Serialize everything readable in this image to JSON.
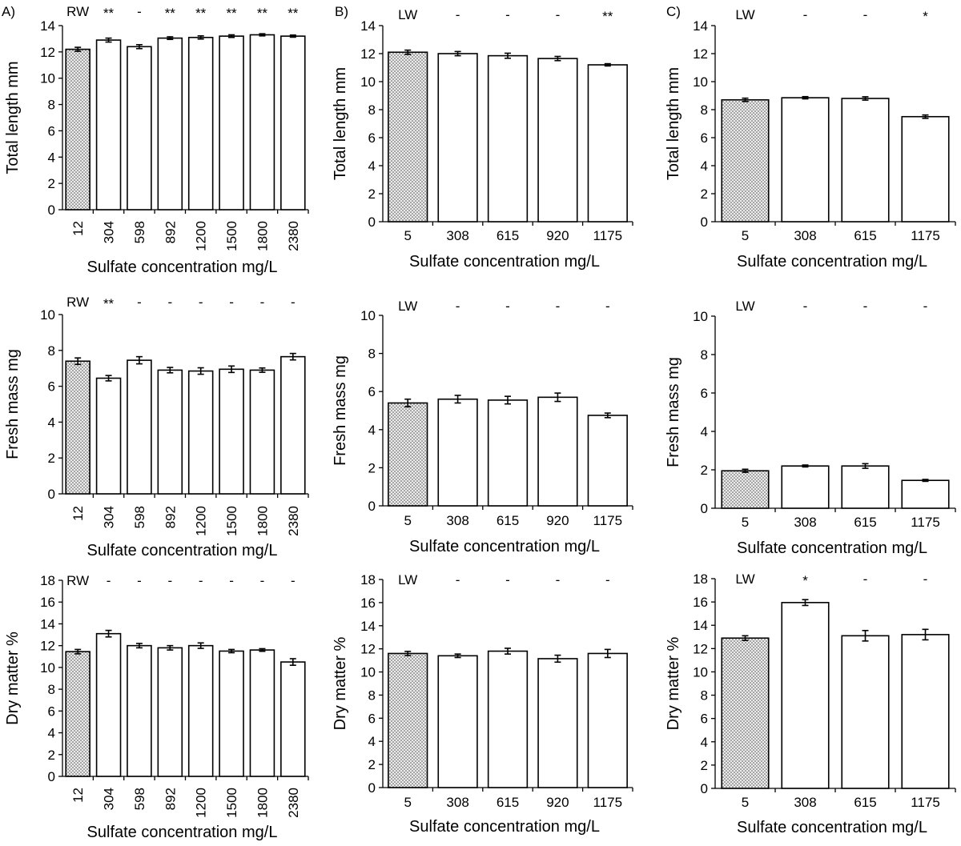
{
  "colors": {
    "control_fill": "#e9e9e9",
    "bar_fill": "#ffffff",
    "axis": "#000000"
  },
  "chart_data": [
    {
      "id": "A-length",
      "panel_letter": "A)",
      "type": "bar",
      "ylabel": "Total length mm",
      "xlabel": "Sulfate concentration mg/L",
      "ylim": [
        0,
        14
      ],
      "yticks": [
        0,
        2,
        4,
        6,
        8,
        10,
        12,
        14
      ],
      "xtick_rotated": true,
      "categories": [
        "12",
        "304",
        "598",
        "892",
        "1200",
        "1500",
        "1800",
        "2380"
      ],
      "values": [
        12.2,
        12.9,
        12.4,
        13.05,
        13.1,
        13.2,
        13.3,
        13.2
      ],
      "errors": [
        0.15,
        0.15,
        0.15,
        0.1,
        0.12,
        0.1,
        0.08,
        0.08
      ],
      "control_label": "RW",
      "significance": [
        "**",
        "-",
        "**",
        "**",
        "**",
        "**",
        "**"
      ]
    },
    {
      "id": "B-length",
      "panel_letter": "B)",
      "type": "bar",
      "ylabel": "Total length mm",
      "xlabel": "Sulfate concentration mg/L",
      "ylim": [
        0,
        14
      ],
      "yticks": [
        0,
        2,
        4,
        6,
        8,
        10,
        12,
        14
      ],
      "xtick_rotated": false,
      "categories": [
        "5",
        "308",
        "615",
        "920",
        "1175"
      ],
      "values": [
        12.1,
        12.0,
        11.85,
        11.65,
        11.2
      ],
      "errors": [
        0.15,
        0.15,
        0.18,
        0.15,
        0.08
      ],
      "control_label": "LW",
      "significance": [
        "-",
        "-",
        "-",
        "**"
      ]
    },
    {
      "id": "C-length",
      "panel_letter": "C)",
      "type": "bar",
      "ylabel": "Total length mm",
      "xlabel": "Sulfate concentration mg/L",
      "ylim": [
        0,
        14
      ],
      "yticks": [
        0,
        2,
        4,
        6,
        8,
        10,
        12,
        14
      ],
      "xtick_rotated": false,
      "categories": [
        "5",
        "308",
        "615",
        "1175"
      ],
      "values": [
        8.7,
        8.85,
        8.8,
        7.5
      ],
      "errors": [
        0.12,
        0.08,
        0.12,
        0.12
      ],
      "control_label": "LW",
      "significance": [
        "-",
        "-",
        "*"
      ]
    },
    {
      "id": "A-mass",
      "panel_letter": "",
      "type": "bar",
      "ylabel": "Fresh mass mg",
      "xlabel": "Sulfate concentration mg/L",
      "ylim": [
        0,
        10
      ],
      "yticks": [
        0,
        2,
        4,
        6,
        8,
        10
      ],
      "xtick_rotated": true,
      "categories": [
        "12",
        "304",
        "598",
        "892",
        "1200",
        "1500",
        "1800",
        "2380"
      ],
      "values": [
        7.4,
        6.45,
        7.45,
        6.9,
        6.85,
        6.95,
        6.9,
        7.65
      ],
      "errors": [
        0.18,
        0.15,
        0.2,
        0.15,
        0.18,
        0.18,
        0.12,
        0.18
      ],
      "control_label": "RW",
      "significance": [
        "**",
        "-",
        "-",
        "-",
        "-",
        "-",
        "-"
      ]
    },
    {
      "id": "B-mass",
      "panel_letter": "",
      "type": "bar",
      "ylabel": "Fresh mass mg",
      "xlabel": "Sulfate concentration mg/L",
      "ylim": [
        0,
        10
      ],
      "yticks": [
        0,
        2,
        4,
        6,
        8,
        10
      ],
      "xtick_rotated": false,
      "categories": [
        "5",
        "308",
        "615",
        "920",
        "1175"
      ],
      "values": [
        5.4,
        5.6,
        5.55,
        5.7,
        4.75
      ],
      "errors": [
        0.2,
        0.2,
        0.2,
        0.22,
        0.12
      ],
      "control_label": "LW",
      "significance": [
        "-",
        "-",
        "-",
        "-"
      ]
    },
    {
      "id": "C-mass",
      "panel_letter": "",
      "type": "bar",
      "ylabel": "Fresh mass mg",
      "xlabel": "Sulfate concentration mg/L",
      "ylim": [
        0,
        10
      ],
      "yticks": [
        0,
        2,
        4,
        6,
        8,
        10
      ],
      "xtick_rotated": false,
      "categories": [
        "5",
        "308",
        "615",
        "1175"
      ],
      "values": [
        1.95,
        2.2,
        2.2,
        1.45
      ],
      "errors": [
        0.08,
        0.05,
        0.12,
        0.05
      ],
      "control_label": "LW",
      "significance": [
        "-",
        "-",
        "-"
      ]
    },
    {
      "id": "A-dry",
      "panel_letter": "",
      "type": "bar",
      "ylabel": "Dry matter %",
      "xlabel": "Sulfate concentration mg/L",
      "ylim": [
        0,
        18
      ],
      "yticks": [
        0,
        2,
        4,
        6,
        8,
        10,
        12,
        14,
        16,
        18
      ],
      "xtick_rotated": true,
      "categories": [
        "12",
        "304",
        "598",
        "892",
        "1200",
        "1500",
        "1800",
        "2380"
      ],
      "values": [
        11.45,
        13.1,
        12.0,
        11.8,
        12.0,
        11.5,
        11.6,
        10.5
      ],
      "errors": [
        0.2,
        0.3,
        0.2,
        0.2,
        0.25,
        0.15,
        0.12,
        0.3
      ],
      "control_label": "RW",
      "significance": [
        "-",
        "-",
        "-",
        "-",
        "-",
        "-",
        "-"
      ]
    },
    {
      "id": "B-dry",
      "panel_letter": "",
      "type": "bar",
      "ylabel": "Dry matter %",
      "xlabel": "Sulfate concentration mg/L",
      "ylim": [
        0,
        18
      ],
      "yticks": [
        0,
        2,
        4,
        6,
        8,
        10,
        12,
        14,
        16,
        18
      ],
      "xtick_rotated": false,
      "categories": [
        "5",
        "308",
        "615",
        "920",
        "1175"
      ],
      "values": [
        11.6,
        11.4,
        11.8,
        11.15,
        11.6
      ],
      "errors": [
        0.18,
        0.15,
        0.25,
        0.3,
        0.35
      ],
      "control_label": "LW",
      "significance": [
        "-",
        "-",
        "-",
        "-"
      ]
    },
    {
      "id": "C-dry",
      "panel_letter": "",
      "type": "bar",
      "ylabel": "Dry matter %",
      "xlabel": "Sulfate concentration mg/L",
      "ylim": [
        0,
        18
      ],
      "yticks": [
        0,
        2,
        4,
        6,
        8,
        10,
        12,
        14,
        16,
        18
      ],
      "xtick_rotated": false,
      "categories": [
        "5",
        "308",
        "615",
        "1175"
      ],
      "values": [
        12.9,
        15.95,
        13.1,
        13.2
      ],
      "errors": [
        0.2,
        0.25,
        0.45,
        0.45
      ],
      "control_label": "LW",
      "significance": [
        "*",
        "-",
        "-"
      ]
    }
  ]
}
